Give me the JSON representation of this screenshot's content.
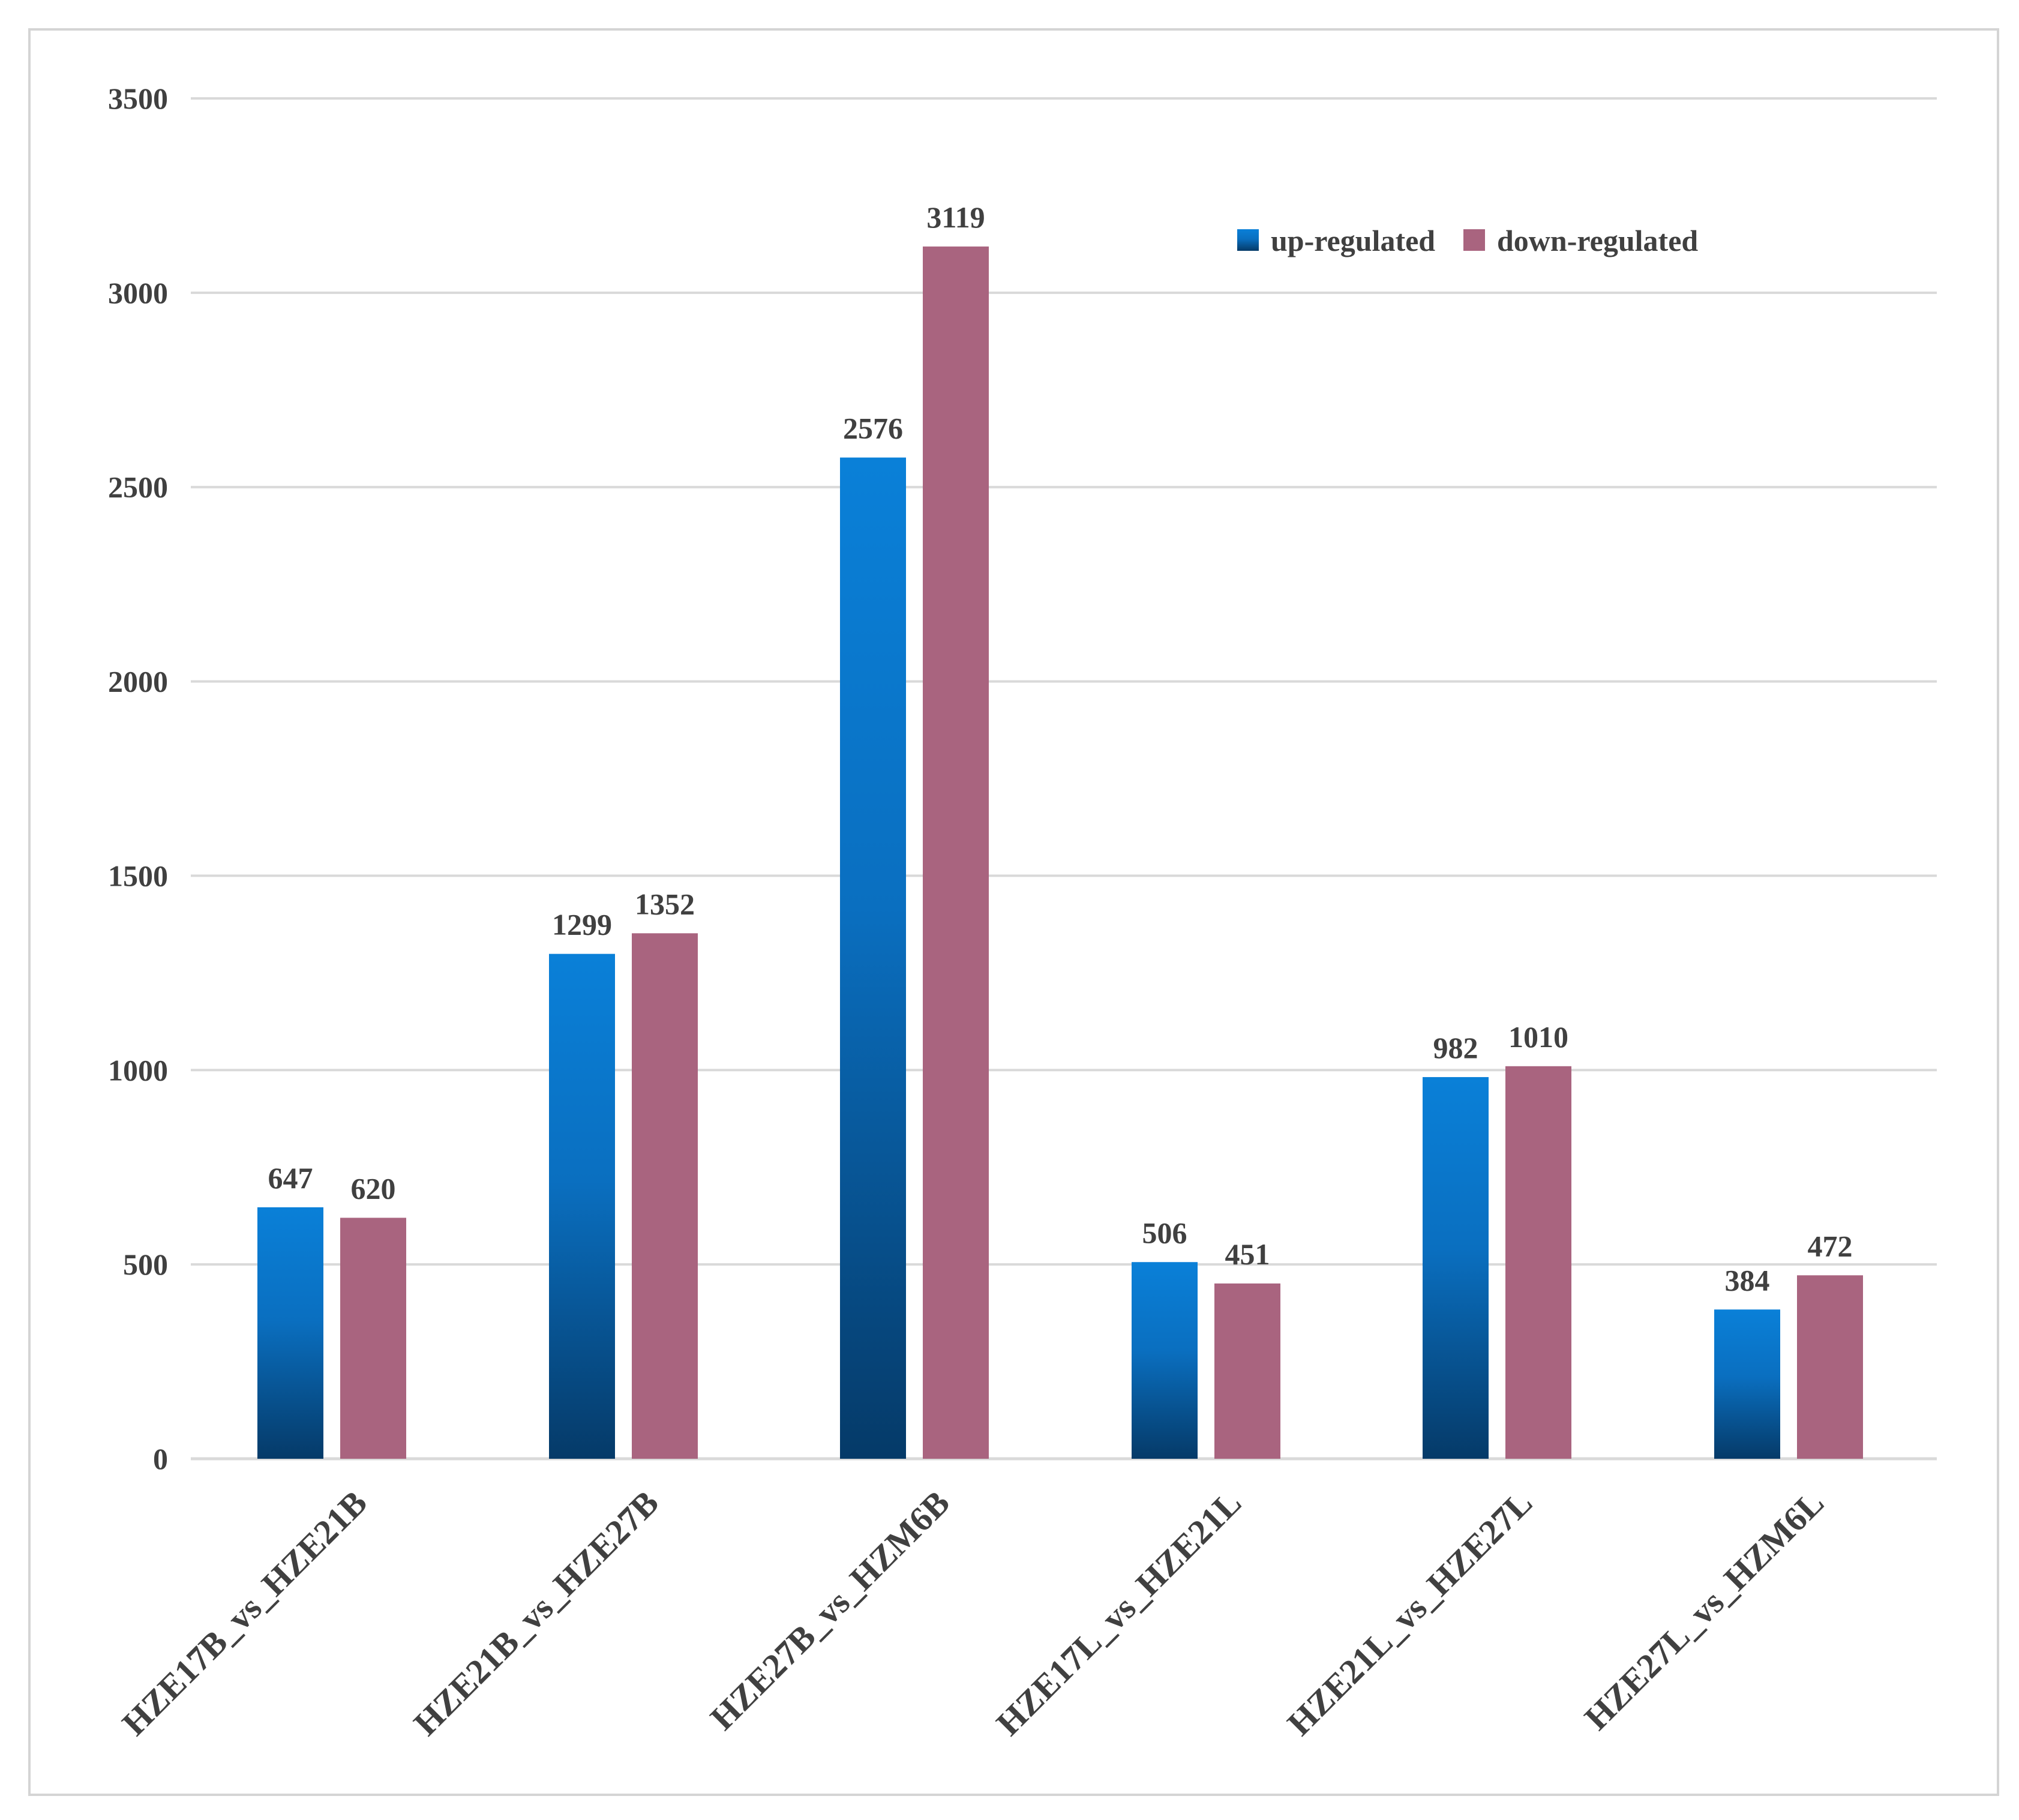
{
  "chart_data": {
    "type": "bar",
    "title": "",
    "xlabel": "",
    "ylabel": "",
    "ylim": [
      0,
      3500
    ],
    "yticks": [
      0,
      500,
      1000,
      1500,
      2000,
      2500,
      3000,
      3500
    ],
    "grid": true,
    "legend_position": "top-right",
    "categories": [
      "HZE17B_vs_HZE21B",
      "HZE21B_vs_HZE27B",
      "HZE27B_vs_HZM6B",
      "HZE17L_vs_HZE21L",
      "HZE21L_vs_HZE27L",
      "HZE27L_vs_HZM6L"
    ],
    "series": [
      {
        "name": "up-regulated",
        "values": [
          647,
          1299,
          2576,
          506,
          982,
          384
        ],
        "color_top": "#0a80d8",
        "color_bottom": "#053a68"
      },
      {
        "name": "down-regulated",
        "values": [
          620,
          1352,
          3119,
          451,
          1010,
          472
        ],
        "color": "#a9647f"
      }
    ]
  }
}
